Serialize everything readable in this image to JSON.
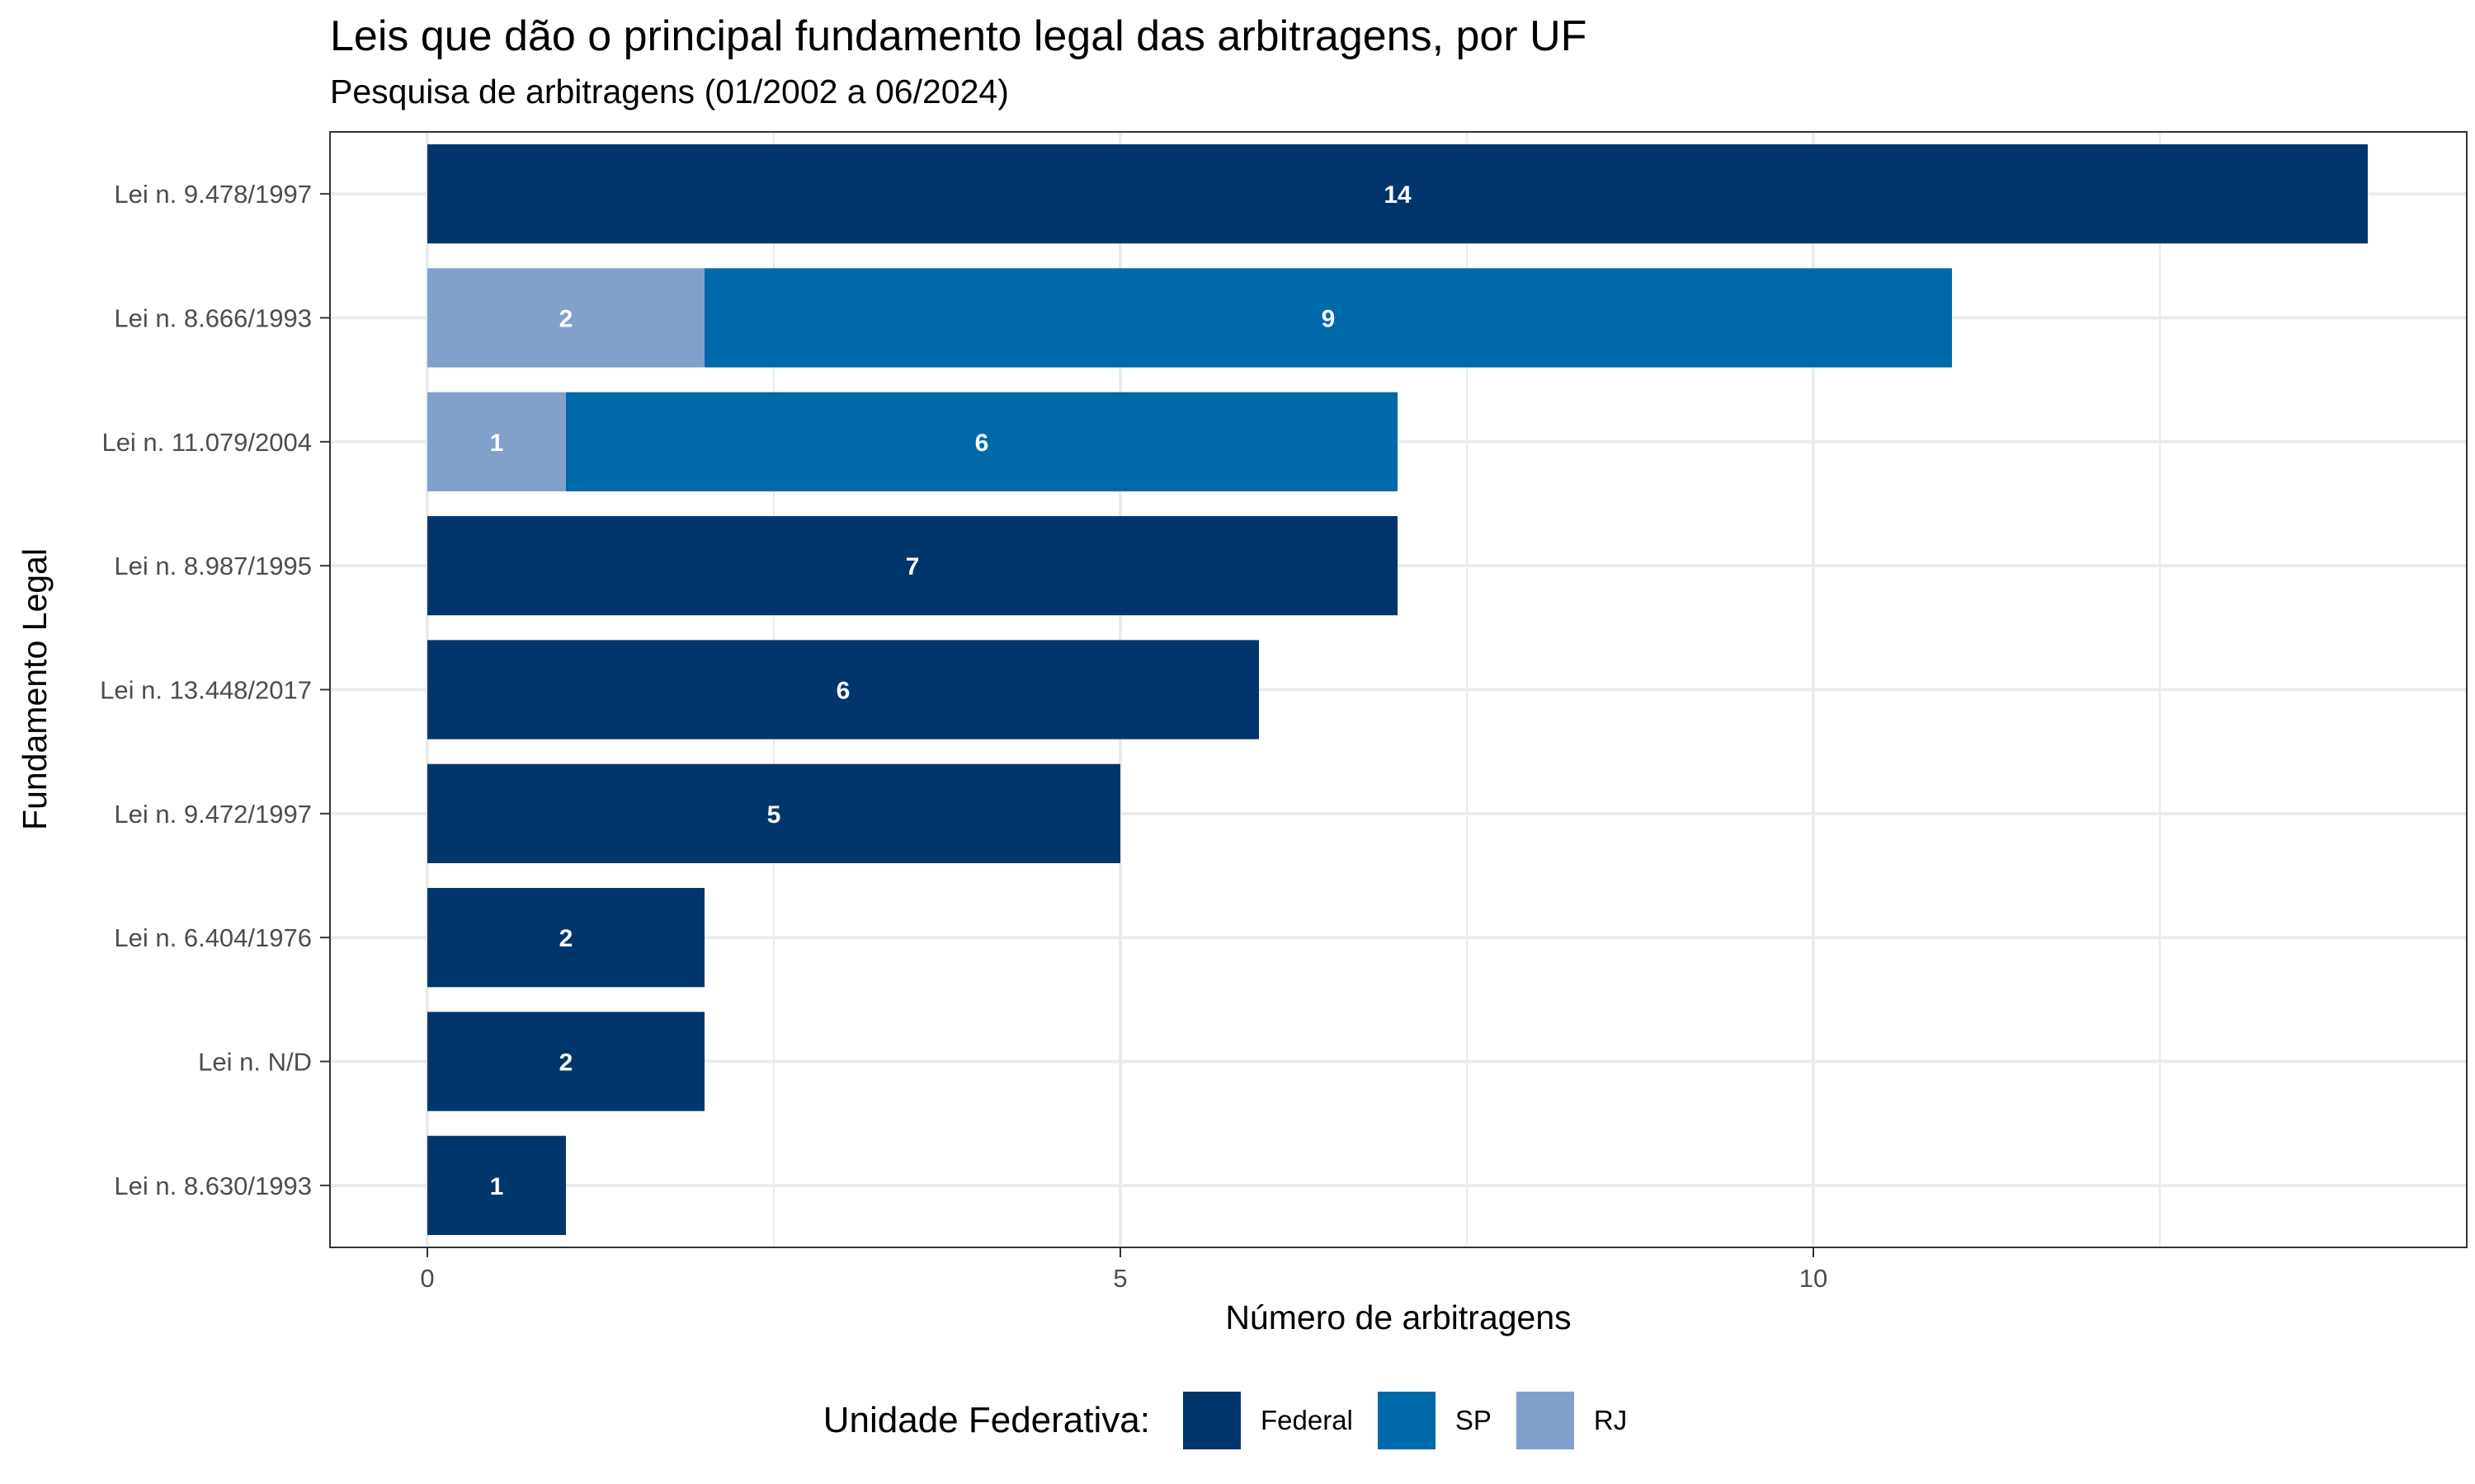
{
  "chart_data": {
    "type": "bar",
    "orientation": "horizontal",
    "stacked": true,
    "title": "Leis que dão o principal fundamento legal das arbitragens, por UF",
    "subtitle": "Pesquisa de arbitragens (01/2002 a 06/2024)",
    "xlabel": "Número de arbitragens",
    "ylabel": "Fundamento Legal",
    "xlim": [
      0,
      14
    ],
    "xticks": [
      "0",
      "5",
      "10"
    ],
    "grid": true,
    "legend_position": "bottom",
    "legend_title": "Unidade Federativa:",
    "categories": [
      "Lei n. 9.478/1997",
      "Lei n. 8.666/1993",
      "Lei n. 11.079/2004",
      "Lei n. 8.987/1995",
      "Lei n. 13.448/2017",
      "Lei n. 9.472/1997",
      "Lei n. 6.404/1976",
      "Lei n. N/D",
      "Lei n. 8.630/1993"
    ],
    "series": [
      {
        "name": "Federal",
        "color": "#00366C",
        "values": [
          14,
          0,
          0,
          7,
          6,
          5,
          2,
          2,
          1
        ]
      },
      {
        "name": "SP",
        "color": "#0069AA",
        "values": [
          0,
          9,
          6,
          0,
          0,
          0,
          0,
          0,
          0
        ]
      },
      {
        "name": "RJ",
        "color": "#81A1CC",
        "values": [
          0,
          2,
          1,
          0,
          0,
          0,
          0,
          0,
          0
        ]
      }
    ],
    "stack_order_left_to_right": [
      "RJ",
      "SP",
      "Federal"
    ]
  }
}
